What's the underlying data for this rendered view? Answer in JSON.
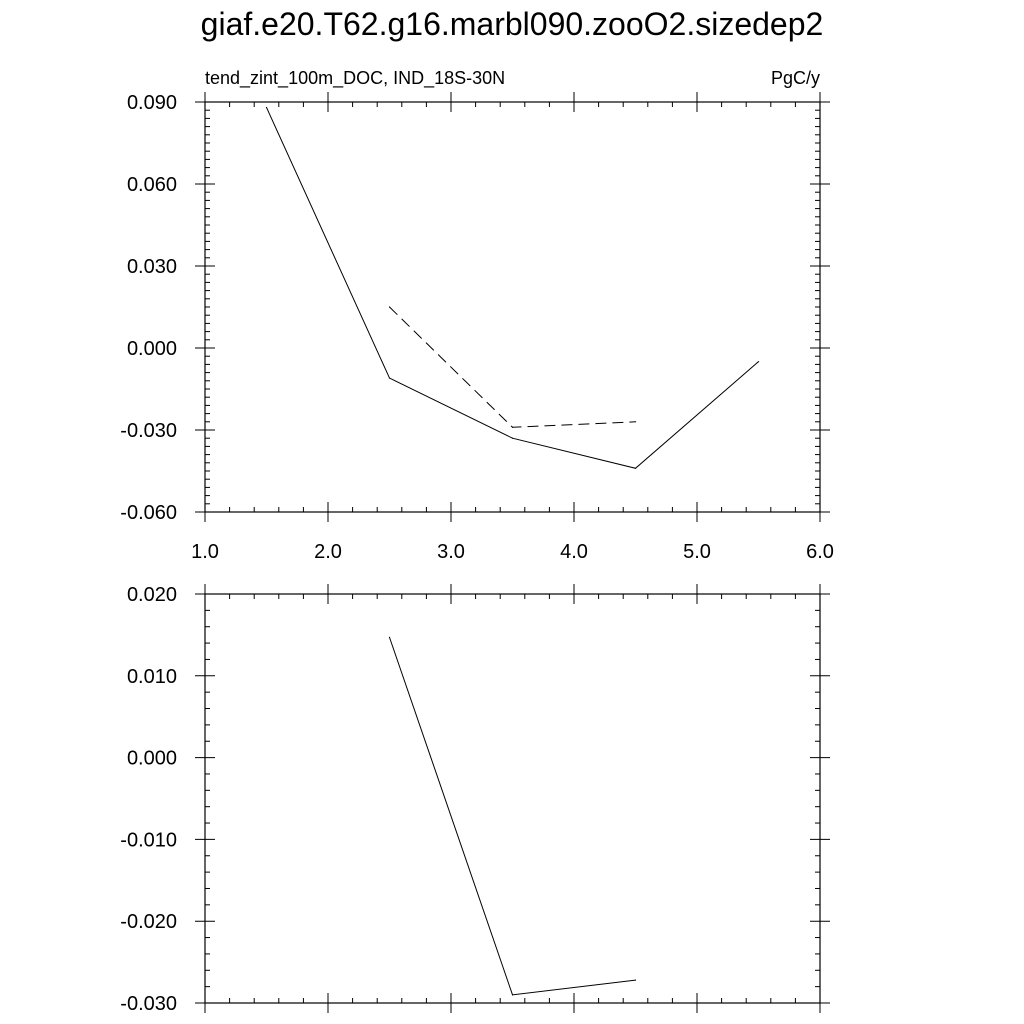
{
  "page": {
    "title": "giaf.e20.T62.g16.marbl090.zooO2.sizedep2"
  },
  "chart_data": [
    {
      "type": "line",
      "left_label": "tend_zint_100m_DOC, IND_18S-30N",
      "right_label": "PgC/y",
      "xlim": [
        1.0,
        6.0
      ],
      "ylim": [
        -0.06,
        0.09
      ],
      "x_ticks": [
        1.0,
        2.0,
        3.0,
        4.0,
        5.0,
        6.0
      ],
      "x_tick_labels": [
        "1.0",
        "2.0",
        "3.0",
        "4.0",
        "5.0",
        "6.0"
      ],
      "y_ticks": [
        0.09,
        0.06,
        0.03,
        0.0,
        -0.03,
        -0.06
      ],
      "y_tick_labels": [
        "0.090",
        "0.060",
        "0.030",
        "0.000",
        "-0.030",
        "-0.060"
      ],
      "grid": false,
      "series": [
        {
          "style": "solid",
          "color": "#000000",
          "x": [
            1.5,
            2.5,
            3.5,
            4.5,
            5.5
          ],
          "y": [
            0.088,
            -0.011,
            -0.033,
            -0.044,
            -0.005
          ]
        },
        {
          "style": "dashed",
          "color": "#000000",
          "x": [
            2.5,
            3.5,
            4.5
          ],
          "y": [
            0.015,
            -0.029,
            -0.027
          ]
        }
      ]
    },
    {
      "type": "line",
      "xlim": [
        1.0,
        6.0
      ],
      "ylim": [
        -0.03,
        0.02
      ],
      "x_ticks": [
        1.0,
        2.0,
        3.0,
        4.0,
        5.0,
        6.0
      ],
      "y_ticks": [
        0.02,
        0.01,
        0.0,
        -0.01,
        -0.02,
        -0.03
      ],
      "y_tick_labels": [
        "0.020",
        "0.010",
        "0.000",
        "-0.010",
        "-0.020",
        "-0.030"
      ],
      "grid": false,
      "series": [
        {
          "style": "solid",
          "color": "#000000",
          "x": [
            2.5,
            3.5,
            4.5
          ],
          "y": [
            0.0147,
            -0.029,
            -0.0272
          ]
        }
      ]
    }
  ]
}
